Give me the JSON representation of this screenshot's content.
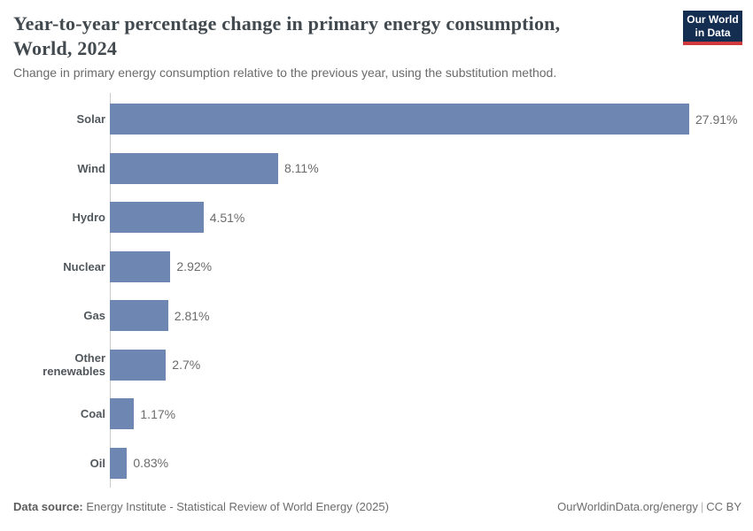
{
  "header": {
    "title_line1": "Year-to-year percentage change in primary energy consumption,",
    "title_line2": "World, 2024",
    "subtitle": "Change in primary energy consumption relative to the previous year, using the substitution method.",
    "logo": {
      "line1": "Our World",
      "line2": "in Data"
    }
  },
  "chart_data": {
    "type": "bar",
    "orientation": "horizontal",
    "title": "Year-to-year percentage change in primary energy consumption, World, 2024",
    "subtitle": "Change in primary energy consumption relative to the previous year, using the substitution method.",
    "categories": [
      "Solar",
      "Wind",
      "Hydro",
      "Nuclear",
      "Gas",
      "Other renewables",
      "Coal",
      "Oil"
    ],
    "values": [
      27.91,
      8.11,
      4.51,
      2.92,
      2.81,
      2.7,
      1.17,
      0.83
    ],
    "value_labels": [
      "27.91%",
      "8.11%",
      "4.51%",
      "2.92%",
      "2.81%",
      "2.7%",
      "1.17%",
      "0.83%"
    ],
    "xlabel": "",
    "ylabel": "",
    "xlim": [
      0,
      27.91
    ],
    "unit": "%",
    "grid": false,
    "legend": false,
    "bar_color": "#6d87b2",
    "axis_color": "#cccccc"
  },
  "colors": {
    "title": "#424a4f",
    "subtitle": "#6b6b6b",
    "category_label": "#50575c",
    "value_label": "#6b6b6b",
    "logo_navy": "#142e52",
    "logo_red": "#d03a3d"
  },
  "footer": {
    "source_label": "Data source:",
    "source_text": "Energy Institute - Statistical Review of World Energy (2025)",
    "link": "OurWorldinData.org/energy",
    "separator": "|",
    "license": "CC BY"
  }
}
